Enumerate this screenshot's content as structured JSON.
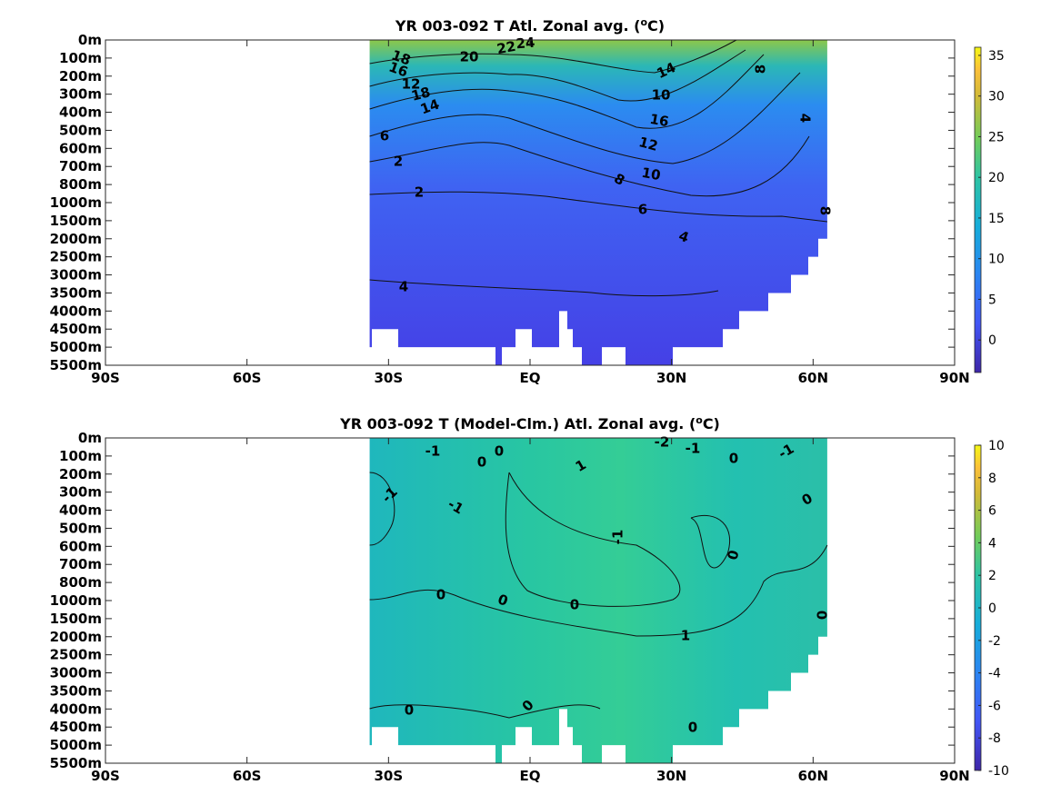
{
  "chart_data": [
    {
      "type": "heatmap",
      "title_parts": [
        "YR 003-092 T Atl. Zonal avg. (",
        "o",
        "C)"
      ],
      "x_ticks": [
        "90S",
        "60S",
        "30S",
        "EQ",
        "30N",
        "60N",
        "90N"
      ],
      "x_values": [
        -90,
        -60,
        -30,
        0,
        30,
        60,
        90
      ],
      "y_ticks": [
        "0m",
        "100m",
        "200m",
        "300m",
        "400m",
        "500m",
        "600m",
        "700m",
        "800m",
        "1000m",
        "1500m",
        "2000m",
        "2500m",
        "3000m",
        "3500m",
        "4000m",
        "4500m",
        "5000m",
        "5500m"
      ],
      "data_extent_lat": [
        -34,
        63
      ],
      "colorbar": {
        "ticks": [
          35,
          30,
          25,
          20,
          15,
          10,
          5,
          0
        ],
        "range": [
          -4,
          36
        ]
      },
      "contour_labels": [
        "24",
        "22",
        "20",
        "18",
        "16",
        "14",
        "12",
        "10",
        "18",
        "16",
        "14",
        "12",
        "10",
        "8",
        "8",
        "6",
        "4",
        "2",
        "2",
        "8",
        "6",
        "4",
        "4"
      ],
      "colors": {
        "deep": "#3d3df0",
        "mid": "#2a8ff0",
        "warm": "#5cc45c",
        "hot": "#a6c93a"
      }
    },
    {
      "type": "heatmap",
      "title_parts": [
        "YR 003-092 T (Model-Clm.) Atl. Zonal avg. (",
        "o",
        "C)"
      ],
      "x_ticks": [
        "90S",
        "60S",
        "30S",
        "EQ",
        "30N",
        "60N",
        "90N"
      ],
      "x_values": [
        -90,
        -60,
        -30,
        0,
        30,
        60,
        90
      ],
      "y_ticks": [
        "0m",
        "100m",
        "200m",
        "300m",
        "400m",
        "500m",
        "600m",
        "700m",
        "800m",
        "1000m",
        "1500m",
        "2000m",
        "2500m",
        "3000m",
        "3500m",
        "4000m",
        "4500m",
        "5000m",
        "5500m"
      ],
      "data_extent_lat": [
        -34,
        63
      ],
      "colorbar": {
        "ticks": [
          10,
          8,
          6,
          4,
          2,
          0,
          -2,
          -4,
          -6,
          -8,
          -10
        ],
        "range": [
          -10,
          10
        ]
      },
      "contour_labels": [
        "-1",
        "0",
        "0",
        "1",
        "-2",
        "-1",
        "0",
        "-1",
        "-1",
        "-1",
        "0",
        "0",
        "-1",
        "0",
        "0",
        "0",
        "0",
        "1",
        "0",
        "0",
        "0",
        "0"
      ],
      "colors": {
        "base": "#1ec3a8",
        "pos": "#3ad28a",
        "neg": "#2b9ee8"
      }
    }
  ]
}
